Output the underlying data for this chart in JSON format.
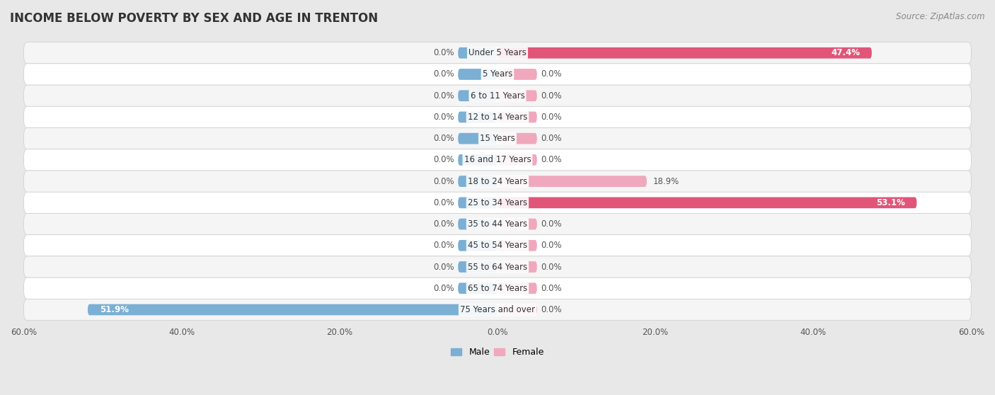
{
  "title": "INCOME BELOW POVERTY BY SEX AND AGE IN TRENTON",
  "source": "Source: ZipAtlas.com",
  "categories": [
    "Under 5 Years",
    "5 Years",
    "6 to 11 Years",
    "12 to 14 Years",
    "15 Years",
    "16 and 17 Years",
    "18 to 24 Years",
    "25 to 34 Years",
    "35 to 44 Years",
    "45 to 54 Years",
    "55 to 64 Years",
    "65 to 74 Years",
    "75 Years and over"
  ],
  "male_values": [
    0.0,
    0.0,
    0.0,
    0.0,
    0.0,
    0.0,
    0.0,
    0.0,
    0.0,
    0.0,
    0.0,
    0.0,
    51.9
  ],
  "female_values": [
    47.4,
    0.0,
    0.0,
    0.0,
    0.0,
    0.0,
    18.9,
    53.1,
    0.0,
    0.0,
    0.0,
    0.0,
    0.0
  ],
  "male_color": "#7bafd4",
  "female_color": "#e8839a",
  "female_color_strong": "#e05578",
  "female_color_light": "#f0a8bc",
  "bar_height": 0.52,
  "xlim": [
    -60,
    60
  ],
  "xtick_values": [
    -60,
    -40,
    -20,
    0,
    20,
    40,
    60
  ],
  "xtick_labels": [
    "60.0%",
    "40.0%",
    "20.0%",
    "0.0%",
    "20.0%",
    "40.0%",
    "60.0%"
  ],
  "background_color": "#e8e8e8",
  "row_bg_even": "#f5f5f5",
  "row_bg_odd": "#ffffff",
  "title_fontsize": 12,
  "label_fontsize": 8.5,
  "value_fontsize": 8.5,
  "source_fontsize": 8.5,
  "legend_male_label": "Male",
  "legend_female_label": "Female",
  "stub_size": 5.0
}
